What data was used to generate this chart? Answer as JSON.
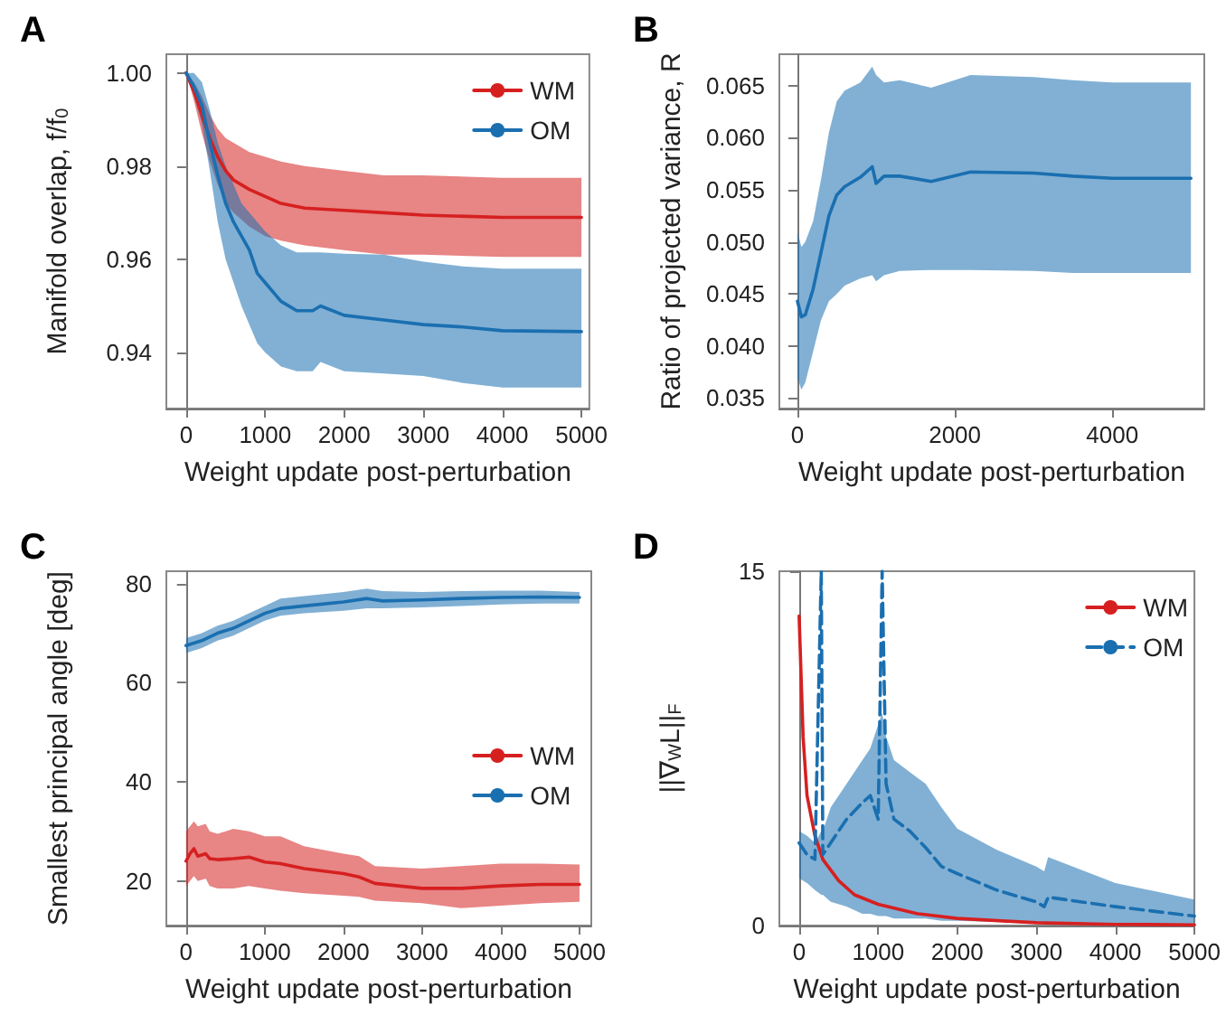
{
  "chart_data": [
    {
      "type": "line",
      "title": "A",
      "xlabel": "Weight update post-perturbation",
      "ylabel": "Manifold overlap, f/f$_{0}$",
      "xlim": [
        -250,
        5100
      ],
      "ylim": [
        0.928,
        1.004
      ],
      "xticks": [
        0,
        1000,
        2000,
        3000,
        4000,
        5000
      ],
      "yticks": [
        {
          "value": 0.94,
          "label": "0.94"
        },
        {
          "value": 0.96,
          "label": "0.96"
        },
        {
          "value": 0.98,
          "label": "0.98"
        },
        {
          "value": 1,
          "label": "1.00"
        }
      ],
      "legend": "top right",
      "series": [
        {
          "name": "WM",
          "color": "#d62020",
          "x": [
            0,
            100,
            200,
            300,
            400,
            500,
            600,
            800,
            1000,
            1200,
            1500,
            2000,
            2500,
            3000,
            4000,
            5000
          ],
          "values": [
            1.0,
            0.996,
            0.991,
            0.986,
            0.982,
            0.979,
            0.977,
            0.975,
            0.9735,
            0.972,
            0.971,
            0.9705,
            0.97,
            0.9695,
            0.969,
            0.969
          ],
          "upper": [
            1.0,
            0.998,
            0.995,
            0.991,
            0.988,
            0.986,
            0.985,
            0.983,
            0.982,
            0.981,
            0.98,
            0.979,
            0.978,
            0.978,
            0.9775,
            0.9775
          ],
          "lower": [
            1.0,
            0.994,
            0.987,
            0.981,
            0.976,
            0.972,
            0.97,
            0.967,
            0.965,
            0.964,
            0.963,
            0.962,
            0.961,
            0.961,
            0.9605,
            0.9605
          ]
        },
        {
          "name": "OM",
          "color": "#1a6fb0",
          "x": [
            0,
            100,
            200,
            300,
            400,
            500,
            600,
            700,
            800,
            900,
            1000,
            1200,
            1400,
            1600,
            1700,
            2000,
            2500,
            3000,
            3500,
            4000,
            5000
          ],
          "values": [
            1.0,
            0.997,
            0.993,
            0.985,
            0.978,
            0.972,
            0.968,
            0.965,
            0.962,
            0.957,
            0.955,
            0.951,
            0.949,
            0.949,
            0.95,
            0.948,
            0.947,
            0.946,
            0.9455,
            0.9447,
            0.9445
          ],
          "upper": [
            1.0,
            1.0,
            0.998,
            0.992,
            0.985,
            0.98,
            0.976,
            0.972,
            0.97,
            0.968,
            0.966,
            0.963,
            0.9615,
            0.9615,
            0.9615,
            0.9612,
            0.961,
            0.9595,
            0.9585,
            0.958,
            0.958
          ],
          "lower": [
            1.0,
            0.995,
            0.989,
            0.979,
            0.968,
            0.96,
            0.955,
            0.95,
            0.946,
            0.942,
            0.94,
            0.937,
            0.936,
            0.936,
            0.938,
            0.936,
            0.9355,
            0.935,
            0.9335,
            0.9325,
            0.9325
          ]
        }
      ]
    },
    {
      "type": "line",
      "title": "B",
      "xlabel": "Weight update post-perturbation",
      "ylabel": "Ratio of projected variance, R",
      "xlim": [
        -230,
        5170
      ],
      "ylim": [
        0.034,
        0.068
      ],
      "xticks": [
        0,
        2000,
        4000
      ],
      "yticks": [
        {
          "value": 0.035,
          "label": "0.035"
        },
        {
          "value": 0.04,
          "label": "0.040"
        },
        {
          "value": 0.045,
          "label": "0.045"
        },
        {
          "value": 0.05,
          "label": "0.050"
        },
        {
          "value": 0.055,
          "label": "0.055"
        },
        {
          "value": 0.06,
          "label": "0.060"
        },
        {
          "value": 0.065,
          "label": "0.065"
        }
      ],
      "series": [
        {
          "color": "#1a6fb0",
          "x": [
            0,
            50,
            100,
            200,
            300,
            400,
            500,
            600,
            800,
            950,
            1000,
            1100,
            1300,
            1700,
            2200,
            3000,
            3500,
            4000,
            5000
          ],
          "values": [
            0.0443,
            0.0428,
            0.043,
            0.0455,
            0.049,
            0.0525,
            0.0545,
            0.0553,
            0.0562,
            0.0572,
            0.0556,
            0.0563,
            0.0563,
            0.0558,
            0.0567,
            0.0566,
            0.0563,
            0.0561,
            0.0561
          ],
          "upper": [
            0.051,
            0.0495,
            0.05,
            0.052,
            0.056,
            0.0605,
            0.0635,
            0.0645,
            0.0653,
            0.0668,
            0.066,
            0.0653,
            0.0655,
            0.0648,
            0.066,
            0.0658,
            0.0655,
            0.0653,
            0.0653
          ],
          "lower": [
            0.037,
            0.0358,
            0.0365,
            0.0395,
            0.0425,
            0.0443,
            0.045,
            0.0458,
            0.0465,
            0.0468,
            0.0462,
            0.0468,
            0.0472,
            0.0473,
            0.0473,
            0.0472,
            0.047,
            0.047,
            0.047
          ]
        }
      ]
    },
    {
      "type": "line",
      "title": "C",
      "xlabel": "Weight update post-perturbation",
      "ylabel": "Smallest principal angle [deg]",
      "xlim": [
        -250,
        5150
      ],
      "ylim": [
        11,
        82.5
      ],
      "xticks": [
        0,
        1000,
        2000,
        3000,
        4000,
        5000
      ],
      "yticks": [
        20,
        40,
        60,
        80
      ],
      "legend": "right",
      "series": [
        {
          "name": "WM",
          "color": "#d62020",
          "x": [
            0,
            50,
            100,
            150,
            250,
            300,
            400,
            600,
            800,
            1000,
            1200,
            1500,
            2000,
            2200,
            2400,
            3000,
            3500,
            4000,
            4500,
            5000
          ],
          "values": [
            24,
            25.5,
            26.5,
            25,
            25.5,
            24.5,
            24.3,
            24.5,
            24.8,
            23.8,
            23.5,
            22.5,
            21.5,
            20.8,
            19.5,
            18.5,
            18.5,
            19,
            19.3,
            19.3
          ],
          "upper": [
            30,
            31,
            32,
            31,
            31.5,
            30,
            29.5,
            30.5,
            30,
            29,
            29,
            27,
            25.5,
            25,
            23,
            22.5,
            23,
            23.5,
            23.5,
            23.3
          ],
          "lower": [
            19,
            20,
            21,
            20,
            20.5,
            19,
            18.5,
            18.5,
            19,
            18.5,
            18,
            17.5,
            17,
            16.8,
            16,
            15.5,
            14.5,
            15,
            15.5,
            15.8
          ]
        },
        {
          "name": "OM",
          "color": "#1a6fb0",
          "x": [
            0,
            200,
            400,
            600,
            800,
            1000,
            1200,
            1500,
            2000,
            2300,
            2500,
            3000,
            3500,
            4000,
            4500,
            5000
          ],
          "values": [
            67.5,
            68.5,
            70,
            71,
            72.5,
            74,
            75,
            75.5,
            76.3,
            77,
            76.5,
            76.7,
            77,
            77.2,
            77.3,
            77.2
          ],
          "upper": [
            69,
            70,
            71.5,
            72.5,
            74,
            75.5,
            77,
            77.5,
            78.3,
            79,
            78.5,
            78.3,
            78.5,
            78.6,
            78.6,
            78.3
          ],
          "lower": [
            66,
            67,
            68.5,
            69.5,
            71,
            72.5,
            73.5,
            74,
            74.5,
            75,
            75,
            75.2,
            75.5,
            75.8,
            76,
            76
          ]
        }
      ]
    },
    {
      "type": "line",
      "title": "D",
      "xlabel": "Weight update post-perturbation",
      "ylabel": "||∇$_{W}$L||$_{F}$",
      "xlim": [
        -250,
        5000
      ],
      "ylim": [
        0,
        15
      ],
      "xticks": [
        0,
        1000,
        2000,
        3000,
        4000,
        5000
      ],
      "yticks": [
        0,
        15
      ],
      "legend": "top right",
      "series": [
        {
          "name": "WM",
          "color": "#d62020",
          "line_style": "solid",
          "x": [
            0,
            50,
            100,
            200,
            300,
            500,
            700,
            1000,
            1500,
            2000,
            3000,
            4000,
            5000
          ],
          "values": [
            13.1,
            8,
            5.5,
            3.8,
            2.8,
            1.9,
            1.3,
            0.9,
            0.5,
            0.3,
            0.12,
            0.05,
            0.03
          ]
        },
        {
          "name": "OM",
          "color": "#1a6fb0",
          "line_style": "dashed",
          "x": [
            0,
            100,
            200,
            280,
            300,
            400,
            600,
            800,
            900,
            1000,
            1050,
            1100,
            1200,
            1400,
            1600,
            1800,
            2000,
            2500,
            3000,
            3100,
            3150,
            4000,
            5000
          ],
          "values": [
            3.5,
            3,
            2.8,
            15,
            3,
            3.5,
            4.5,
            5.2,
            5.5,
            4.5,
            15,
            6,
            4.5,
            4,
            3.3,
            2.5,
            2.2,
            1.5,
            1,
            0.8,
            1.2,
            0.8,
            0.4
          ],
          "upper": [
            4,
            3.8,
            3.5,
            4,
            4,
            5,
            6,
            7,
            7.5,
            8.5,
            9,
            8,
            7,
            6.5,
            6,
            5,
            4.1,
            3.2,
            2.5,
            2.3,
            2.9,
            1.8,
            1.1
          ],
          "lower": [
            2,
            1.8,
            1.5,
            1.3,
            1.3,
            1,
            0.8,
            0.5,
            0.5,
            0.4,
            0.4,
            0.4,
            0.3,
            0.3,
            0.3,
            0.2,
            0.2,
            0.15,
            0.1,
            0.1,
            0.1,
            0.07,
            0.05
          ]
        }
      ]
    }
  ]
}
